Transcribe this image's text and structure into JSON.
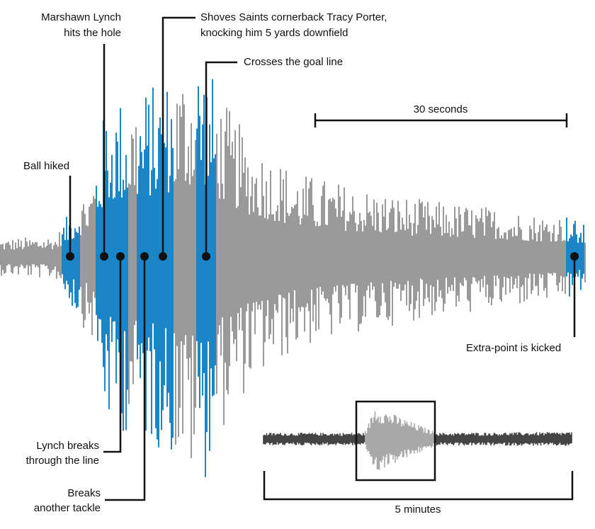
{
  "annotations": {
    "ball_hiked": [
      "Ball hiked"
    ],
    "hits_hole": [
      "Marshawn Lynch",
      "hits the hole"
    ],
    "shoves": [
      "Shoves Saints cornerback Tracy Porter,",
      "knocking him 5 yards downfield"
    ],
    "goal_line": [
      "Crosses the goal line"
    ],
    "breaks_line": [
      "Lynch breaks",
      "through the line"
    ],
    "breaks_tackle": [
      "Breaks",
      "another tackle"
    ],
    "extra_point": [
      "Extra-point is kicked"
    ]
  },
  "scale": {
    "main": "30 seconds",
    "inset": "5 minutes"
  }
}
